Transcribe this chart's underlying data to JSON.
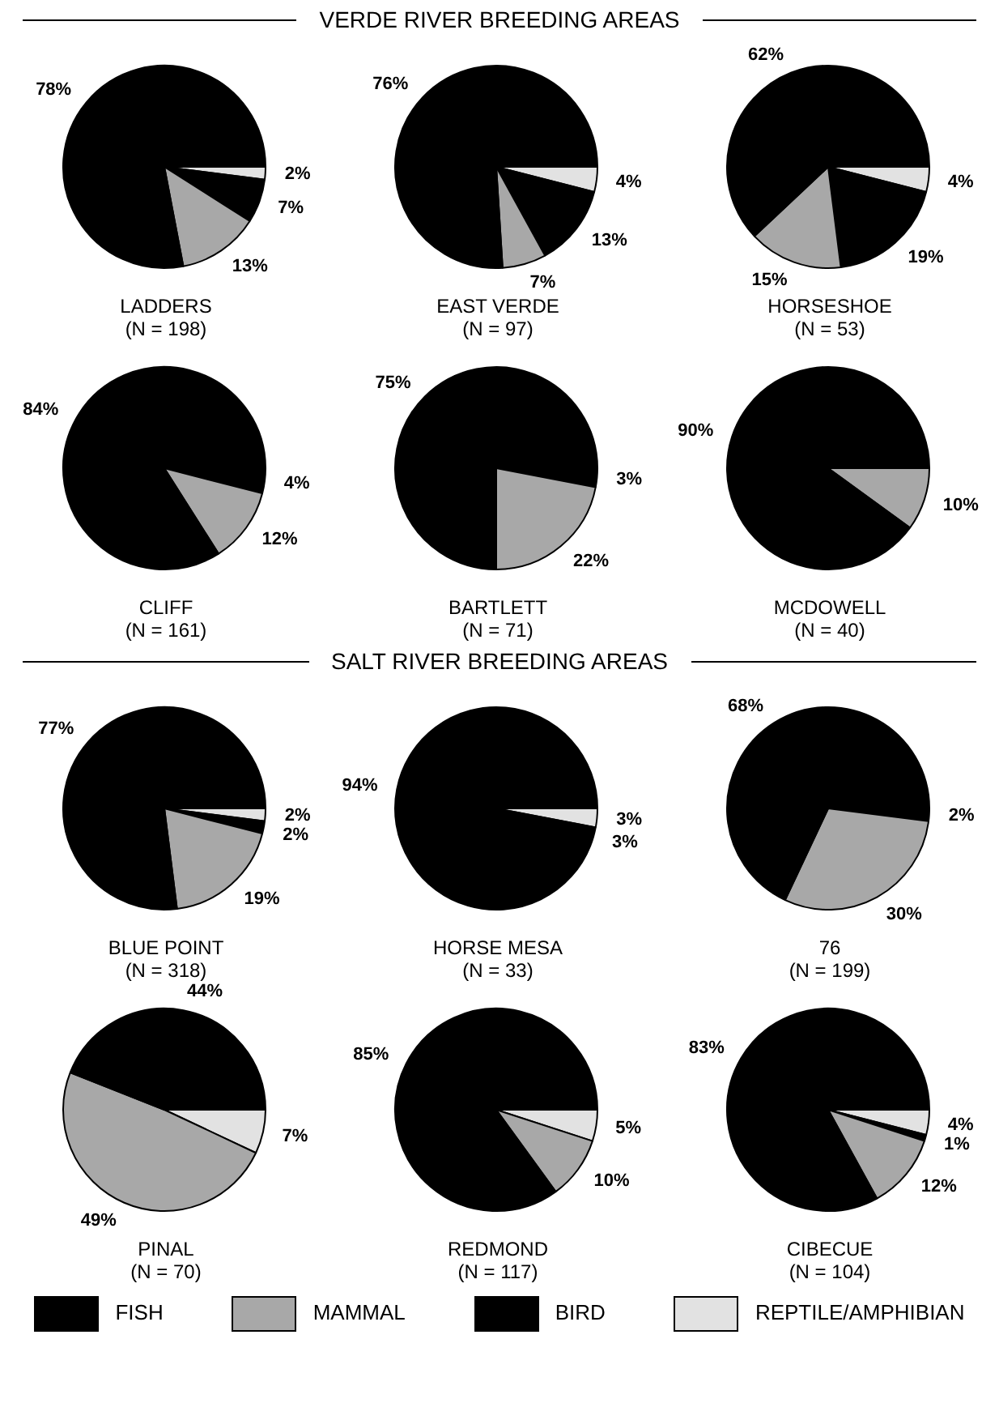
{
  "chart_data": [
    {
      "type": "pie",
      "title": "LADDERS",
      "subtitle": "(N = 198)",
      "annotations": [
        "VERDE RIVER BREEDING AREAS"
      ],
      "categories": [
        "REPTILE/AMPHIBIAN",
        "BIRD",
        "MAMMAL",
        "FISH"
      ],
      "values": [
        2,
        7,
        13,
        78
      ],
      "value_labels": [
        "2%",
        "7%",
        "13%",
        "78%"
      ],
      "colors": [
        "#e2e2e2",
        "#000000",
        "#a8a8a8",
        "#000000"
      ],
      "legend": "bottom"
    },
    {
      "type": "pie",
      "title": "EAST VERDE",
      "subtitle": "(N = 97)",
      "categories": [
        null,
        null,
        null,
        null
      ],
      "values": [
        4,
        13,
        7,
        76
      ],
      "value_labels": [
        "4%",
        "13%",
        "7%",
        "76%"
      ],
      "colors": [
        "#e2e2e2",
        "#000000",
        "#a8a8a8",
        "#000000"
      ]
    },
    {
      "type": "pie",
      "title": "HORSESHOE",
      "subtitle": "(N = 53)",
      "categories": [
        null,
        null,
        null,
        null
      ],
      "values": [
        4,
        19,
        15,
        62
      ],
      "value_labels": [
        "4%",
        "19%",
        "15%",
        "62%"
      ],
      "colors": [
        "#e2e2e2",
        "#000000",
        "#a8a8a8",
        "#000000"
      ]
    },
    {
      "type": "pie",
      "title": "CLIFF",
      "subtitle": "(N = 161)",
      "categories": [
        null,
        null,
        null,
        null
      ],
      "values": [
        0,
        4,
        12,
        84
      ],
      "value_labels": [
        null,
        "4%",
        "12%",
        "84%"
      ],
      "colors": [
        "#e2e2e2",
        "#000000",
        "#a8a8a8",
        "#000000"
      ]
    },
    {
      "type": "pie",
      "title": "BARTLETT",
      "subtitle": "(N = 71)",
      "categories": [
        null,
        null,
        null,
        null
      ],
      "values": [
        0,
        3,
        22,
        75
      ],
      "value_labels": [
        null,
        "3%",
        "22%",
        "75%"
      ],
      "colors": [
        "#e2e2e2",
        "#000000",
        "#a8a8a8",
        "#000000"
      ]
    },
    {
      "type": "pie",
      "title": "MCDOWELL",
      "subtitle": "(N = 40)",
      "categories": [
        null,
        null,
        null,
        null
      ],
      "values": [
        0,
        0,
        10,
        90
      ],
      "value_labels": [
        null,
        null,
        "10%",
        "90%"
      ],
      "colors": [
        "#e2e2e2",
        "#000000",
        "#a8a8a8",
        "#000000"
      ]
    },
    {
      "type": "pie",
      "title": "BLUE POINT",
      "subtitle": "(N = 318)",
      "annotations": [
        "SALT RIVER BREEDING AREAS"
      ],
      "categories": [
        null,
        null,
        null,
        null
      ],
      "values": [
        2,
        2,
        19,
        77
      ],
      "value_labels": [
        "2%",
        "2%",
        "19%",
        "77%"
      ],
      "colors": [
        "#e2e2e2",
        "#000000",
        "#a8a8a8",
        "#000000"
      ]
    },
    {
      "type": "pie",
      "title": "HORSE MESA",
      "subtitle": "(N = 33)",
      "categories": [
        null,
        null,
        null,
        null
      ],
      "values": [
        3,
        3,
        0,
        94
      ],
      "value_labels": [
        "3%",
        "3%",
        null,
        "94%"
      ],
      "colors": [
        "#e2e2e2",
        "#000000",
        "#a8a8a8",
        "#000000"
      ]
    },
    {
      "type": "pie",
      "title": "76",
      "subtitle": "(N = 199)",
      "categories": [
        null,
        null,
        null,
        null
      ],
      "values": [
        0,
        2,
        30,
        68
      ],
      "value_labels": [
        null,
        "2%",
        "30%",
        "68%"
      ],
      "colors": [
        "#e2e2e2",
        "#000000",
        "#a8a8a8",
        "#000000"
      ]
    },
    {
      "type": "pie",
      "title": "PINAL",
      "subtitle": "(N = 70)",
      "categories": [
        null,
        null,
        null,
        null
      ],
      "values": [
        7,
        0,
        49,
        44
      ],
      "value_labels": [
        "7%",
        null,
        "49%",
        "44%"
      ],
      "colors": [
        "#e2e2e2",
        "#000000",
        "#a8a8a8",
        "#000000"
      ]
    },
    {
      "type": "pie",
      "title": "REDMOND",
      "subtitle": "(N = 117)",
      "categories": [
        null,
        null,
        null,
        null
      ],
      "values": [
        5,
        0,
        10,
        85
      ],
      "value_labels": [
        "5%",
        null,
        "10%",
        "85%"
      ],
      "colors": [
        "#e2e2e2",
        "#000000",
        "#a8a8a8",
        "#000000"
      ]
    },
    {
      "type": "pie",
      "title": "CIBECUE",
      "subtitle": "(N = 104)",
      "categories": [
        null,
        null,
        null,
        null
      ],
      "values": [
        4,
        1,
        12,
        83
      ],
      "value_labels": [
        "4%",
        "1%",
        "12%",
        "83%"
      ],
      "colors": [
        "#e2e2e2",
        "#000000",
        "#a8a8a8",
        "#000000"
      ]
    }
  ]
}
